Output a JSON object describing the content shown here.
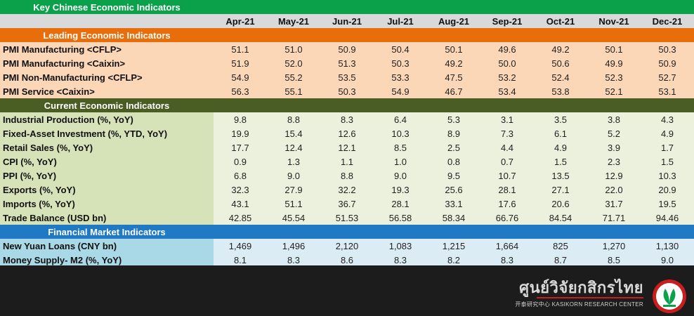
{
  "title": "Key Chinese Economic Indicators",
  "months": [
    "Apr-21",
    "May-21",
    "Jun-21",
    "Jul-21",
    "Aug-21",
    "Sep-21",
    "Oct-21",
    "Nov-21",
    "Dec-21"
  ],
  "sections": [
    {
      "title": "Leading Economic Indicators",
      "rows": [
        {
          "label": "PMI Manufacturing <CFLP>",
          "values": [
            "51.1",
            "51.0",
            "50.9",
            "50.4",
            "50.1",
            "49.6",
            "49.2",
            "50.1",
            "50.3"
          ]
        },
        {
          "label": "PMI Manufacturing <Caixin>",
          "values": [
            "51.9",
            "52.0",
            "51.3",
            "50.3",
            "49.2",
            "50.0",
            "50.6",
            "49.9",
            "50.9"
          ]
        },
        {
          "label": "PMI Non-Manufacturing <CFLP>",
          "values": [
            "54.9",
            "55.2",
            "53.5",
            "53.3",
            "47.5",
            "53.2",
            "52.4",
            "52.3",
            "52.7"
          ]
        },
        {
          "label": "PMI Service <Caixin>",
          "values": [
            "56.3",
            "55.1",
            "50.3",
            "54.9",
            "46.7",
            "53.4",
            "53.8",
            "52.1",
            "53.1"
          ]
        }
      ]
    },
    {
      "title": "Current Economic Indicators",
      "rows": [
        {
          "label": "Industrial Production (%, YoY)",
          "values": [
            "9.8",
            "8.8",
            "8.3",
            "6.4",
            "5.3",
            "3.1",
            "3.5",
            "3.8",
            "4.3"
          ]
        },
        {
          "label": "Fixed-Asset Investment (%, YTD, YoY)",
          "values": [
            "19.9",
            "15.4",
            "12.6",
            "10.3",
            "8.9",
            "7.3",
            "6.1",
            "5.2",
            "4.9"
          ]
        },
        {
          "label": "Retail Sales (%, YoY)",
          "values": [
            "17.7",
            "12.4",
            "12.1",
            "8.5",
            "2.5",
            "4.4",
            "4.9",
            "3.9",
            "1.7"
          ]
        },
        {
          "label": "CPI (%, YoY)",
          "values": [
            "0.9",
            "1.3",
            "1.1",
            "1.0",
            "0.8",
            "0.7",
            "1.5",
            "2.3",
            "1.5"
          ]
        },
        {
          "label": "PPI (%, YoY)",
          "values": [
            "6.8",
            "9.0",
            "8.8",
            "9.0",
            "9.5",
            "10.7",
            "13.5",
            "12.9",
            "10.3"
          ]
        },
        {
          "label": "Exports (%, YoY)",
          "values": [
            "32.3",
            "27.9",
            "32.2",
            "19.3",
            "25.6",
            "28.1",
            "27.1",
            "22.0",
            "20.9"
          ]
        },
        {
          "label": "Imports (%, YoY)",
          "values": [
            "43.1",
            "51.1",
            "36.7",
            "28.1",
            "33.1",
            "17.6",
            "20.6",
            "31.7",
            "19.5"
          ]
        },
        {
          "label": "Trade Balance (USD bn)",
          "values": [
            "42.85",
            "45.54",
            "51.53",
            "56.58",
            "58.34",
            "66.76",
            "84.54",
            "71.71",
            "94.46"
          ]
        }
      ]
    },
    {
      "title": "Financial Market Indicators",
      "rows": [
        {
          "label": "New Yuan Loans (CNY bn)",
          "values": [
            "1,469",
            "1,496",
            "2,120",
            "1,083",
            "1,215",
            "1,664",
            "825",
            "1,270",
            "1,130"
          ]
        },
        {
          "label": "Money Supply- M2 (%, YoY)",
          "values": [
            "8.1",
            "8.3",
            "8.6",
            "8.3",
            "8.2",
            "8.3",
            "8.7",
            "8.5",
            "9.0"
          ]
        }
      ]
    }
  ],
  "logo": {
    "thai_name": "ศูนย์วิจัยกสิกรไทย",
    "subtitle": "开泰研究中心 KASIKORN RESEARCH CENTER",
    "icon": "kasikorn-leaf-icon",
    "colors": {
      "ring": "#c81e1e",
      "leaf": "#0aa14a"
    }
  }
}
